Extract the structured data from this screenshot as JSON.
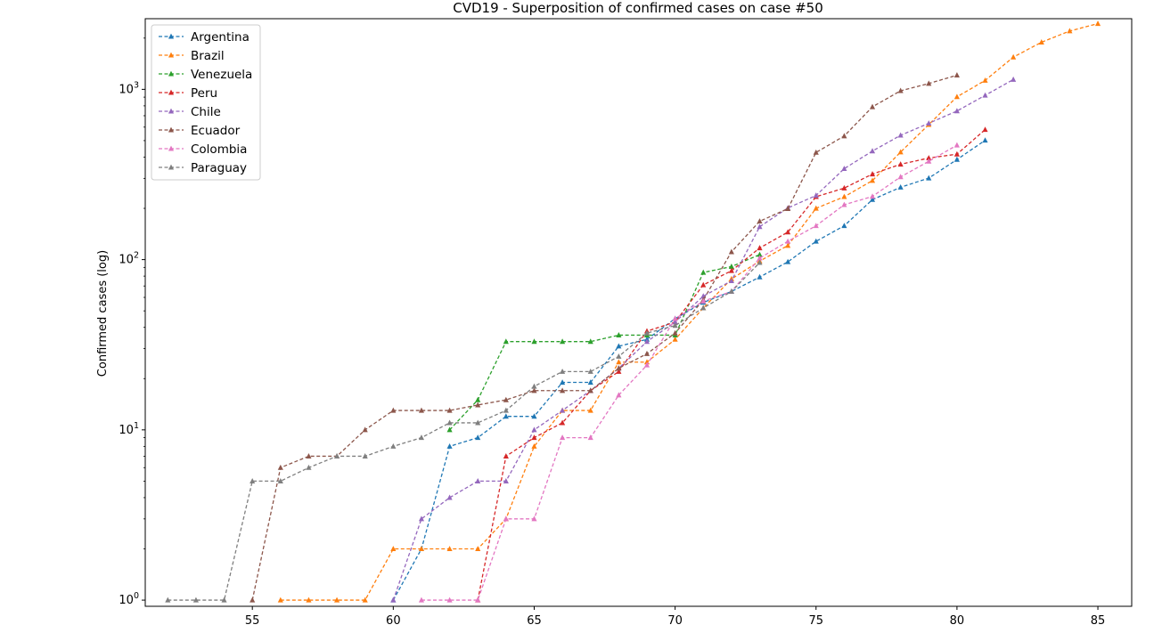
{
  "chart_data": {
    "type": "line",
    "title": "CVD19 - Superposition of confirmed cases on case #50",
    "xlabel": "",
    "ylabel": "Confirmed cases (log)",
    "yscale": "log",
    "xlim": [
      51.2,
      86.2
    ],
    "ylim": [
      0.92,
      2600
    ],
    "xticks": [
      55,
      60,
      65,
      70,
      75,
      80,
      85
    ],
    "yticks": [
      1,
      10,
      100,
      1000
    ],
    "ytick_labels": [
      {
        "base": "10",
        "exp": "0"
      },
      {
        "base": "10",
        "exp": "1"
      },
      {
        "base": "10",
        "exp": "2"
      },
      {
        "base": "10",
        "exp": "3"
      }
    ],
    "line_style": "dashed",
    "marker": "triangle-up",
    "grid": false,
    "legend": "top-left",
    "series": [
      {
        "name": "Argentina",
        "color": "#1f77b4",
        "x": [
          60,
          61,
          62,
          63,
          64,
          65,
          66,
          67,
          68,
          69,
          70,
          71,
          72,
          73,
          74,
          75,
          76,
          77,
          78,
          79,
          80,
          81
        ],
        "y": [
          1,
          2,
          8,
          9,
          12,
          12,
          19,
          19,
          31,
          34,
          45,
          56,
          65,
          79,
          97,
          128,
          158,
          225,
          266,
          301,
          387,
          502
        ]
      },
      {
        "name": "Brazil",
        "color": "#ff7f0e",
        "x": [
          56,
          57,
          58,
          59,
          60,
          61,
          62,
          63,
          64,
          65,
          66,
          67,
          68,
          69,
          70,
          71,
          72,
          73,
          74,
          75,
          76,
          77,
          78,
          79,
          80,
          81,
          82,
          83,
          84,
          85
        ],
        "y": [
          1,
          1,
          1,
          1,
          2,
          2,
          2,
          2,
          3,
          8,
          13,
          13,
          25,
          25,
          34,
          52,
          77,
          98,
          121,
          200,
          234,
          291,
          428,
          621,
          904,
          1128,
          1546,
          1891,
          2201,
          2433
        ]
      },
      {
        "name": "Venezuela",
        "color": "#2ca02c",
        "x": [
          62,
          63,
          64,
          65,
          66,
          67,
          68,
          69,
          70,
          71,
          72,
          73
        ],
        "y": [
          10,
          15,
          33,
          33,
          33,
          33,
          36,
          36,
          36,
          84,
          91,
          107
        ]
      },
      {
        "name": "Peru",
        "color": "#d62728",
        "x": [
          63,
          64,
          65,
          66,
          67,
          68,
          69,
          70,
          71,
          72,
          73,
          74,
          75,
          76,
          77,
          78,
          79,
          80,
          81
        ],
        "y": [
          1,
          7,
          9,
          11,
          17,
          22,
          38,
          43,
          71,
          86,
          117,
          145,
          234,
          263,
          318,
          363,
          395,
          416,
          580
        ]
      },
      {
        "name": "Chile",
        "color": "#9467bd",
        "x": [
          60,
          61,
          62,
          63,
          64,
          65,
          66,
          67,
          68,
          69,
          70,
          71,
          72,
          73,
          74,
          75,
          76,
          77,
          78,
          79,
          80,
          81,
          82
        ],
        "y": [
          1,
          3,
          4,
          5,
          5,
          10,
          13,
          17,
          23,
          33,
          43,
          61,
          75,
          156,
          201,
          238,
          342,
          434,
          537,
          632,
          746,
          922,
          1142
        ]
      },
      {
        "name": "Ecuador",
        "color": "#8c564b",
        "x": [
          55,
          56,
          57,
          58,
          59,
          60,
          61,
          62,
          63,
          64,
          65,
          66,
          67,
          68,
          69,
          70,
          71,
          72,
          73,
          74,
          75,
          76,
          77,
          78,
          79,
          80
        ],
        "y": [
          1,
          6,
          7,
          7,
          10,
          13,
          13,
          13,
          14,
          15,
          17,
          17,
          17,
          23,
          28,
          37,
          58,
          111,
          168,
          199,
          426,
          532,
          789,
          981,
          1082,
          1211
        ]
      },
      {
        "name": "Colombia",
        "color": "#e377c2",
        "x": [
          61,
          62,
          63,
          64,
          65,
          66,
          67,
          68,
          69,
          70,
          71,
          72,
          73,
          74,
          75,
          76,
          77,
          78,
          79,
          80
        ],
        "y": [
          1,
          1,
          1,
          3,
          3,
          9,
          9,
          16,
          24,
          45,
          57,
          65,
          102,
          128,
          158,
          210,
          235,
          306,
          378,
          470
        ]
      },
      {
        "name": "Paraguay",
        "color": "#7f7f7f",
        "x": [
          52,
          53,
          54,
          55,
          56,
          57,
          58,
          59,
          60,
          61,
          62,
          63,
          64,
          65,
          66,
          67,
          68,
          69,
          70,
          71,
          72,
          73
        ],
        "y": [
          1,
          1,
          1,
          5,
          5,
          6,
          7,
          7,
          8,
          9,
          11,
          11,
          13,
          18,
          22,
          22,
          27,
          37,
          41,
          52,
          65,
          96
        ]
      }
    ]
  }
}
